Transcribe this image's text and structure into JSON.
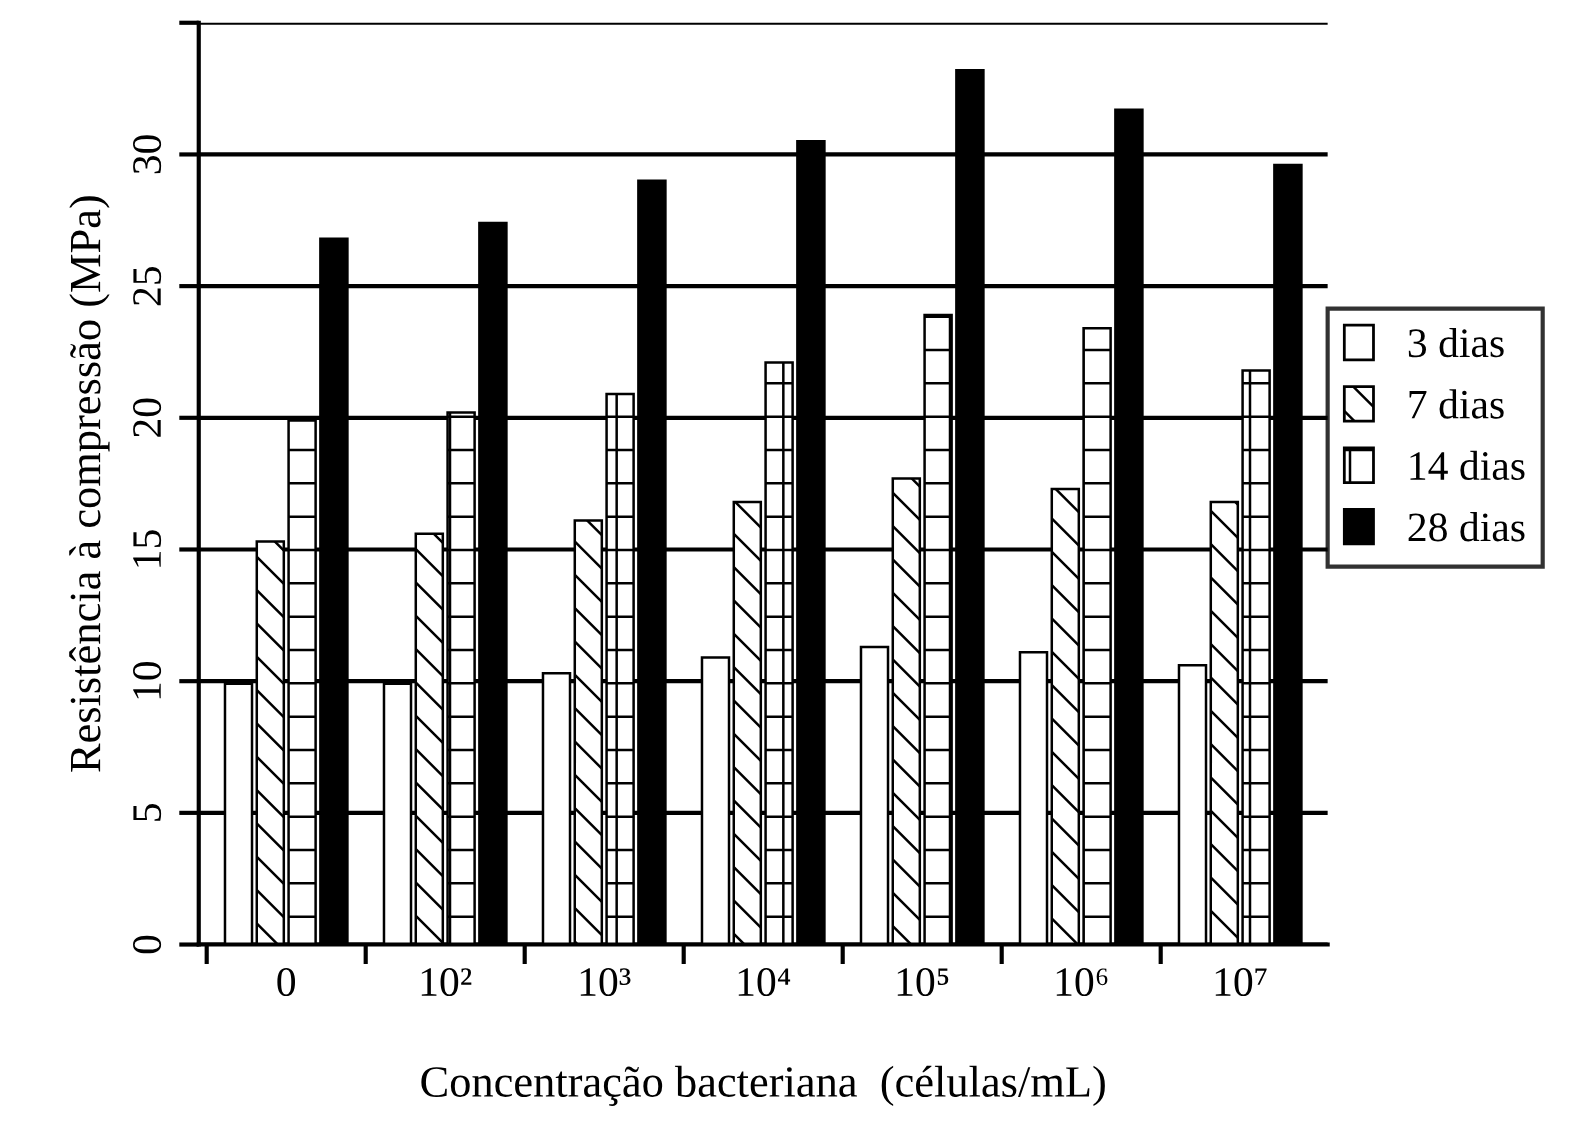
{
  "chart_data": {
    "type": "bar",
    "xlabel": "Concentração bacteriana  (células/mL)",
    "ylabel": "Resistência à compressão (MPa)",
    "categories": [
      "0",
      "10²",
      "10³",
      "10⁴",
      "10⁵",
      "10⁶",
      "10⁷"
    ],
    "series": [
      {
        "name": "3 dias",
        "color": "#ffffff",
        "values": [
          9.9,
          9.9,
          10.3,
          10.9,
          11.3,
          11.1,
          10.6
        ]
      },
      {
        "name": "7 dias",
        "color": "#000000",
        "values": [
          15.3,
          15.6,
          16.1,
          16.8,
          17.7,
          17.3,
          16.8
        ]
      },
      {
        "name": "14 dias",
        "color": "#000000",
        "values": [
          19.9,
          20.2,
          20.9,
          22.1,
          23.9,
          23.4,
          21.8
        ]
      },
      {
        "name": "28 dias",
        "color": "#000000",
        "values": [
          26.8,
          27.4,
          29.0,
          30.5,
          33.2,
          31.7,
          29.6
        ]
      }
    ],
    "ylim": [
      0,
      35
    ],
    "yticks": [
      0,
      5,
      10,
      15,
      20,
      25,
      30,
      {
        "value": 35,
        "label": null
      }
    ],
    "grid": "y",
    "legend": "right"
  }
}
